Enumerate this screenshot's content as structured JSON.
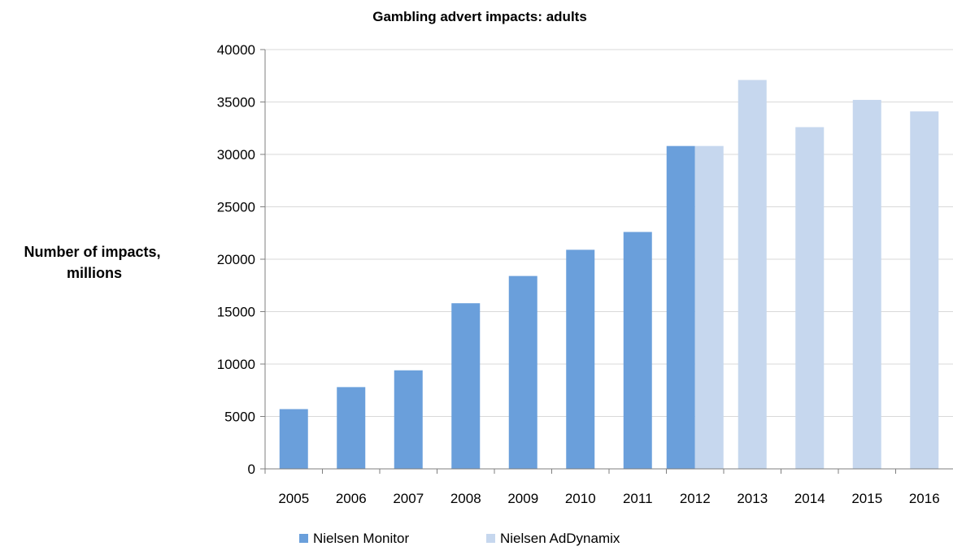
{
  "chart_data": {
    "type": "bar",
    "title": "Gambling advert impacts: adults",
    "ylabel": [
      "Number of impacts,",
      "millions"
    ],
    "xlabel": "",
    "categories": [
      "2005",
      "2006",
      "2007",
      "2008",
      "2009",
      "2010",
      "2011",
      "2012",
      "2013",
      "2014",
      "2015",
      "2016"
    ],
    "yticks": [
      "0",
      "5000",
      "10000",
      "15000",
      "20000",
      "25000",
      "30000",
      "35000",
      "40000"
    ],
    "ylim": [
      0,
      40000
    ],
    "grid": true,
    "legend_position": "bottom",
    "series": [
      {
        "name": "Nielsen Monitor",
        "color": "#6a9fdb",
        "values": [
          5700,
          7800,
          9400,
          15800,
          18400,
          20900,
          22600,
          30800,
          null,
          null,
          null,
          null
        ]
      },
      {
        "name": "Nielsen AdDynamix",
        "color": "#c6d7ee",
        "values": [
          null,
          null,
          null,
          null,
          null,
          null,
          null,
          30800,
          37100,
          32600,
          35200,
          34100
        ]
      }
    ]
  }
}
